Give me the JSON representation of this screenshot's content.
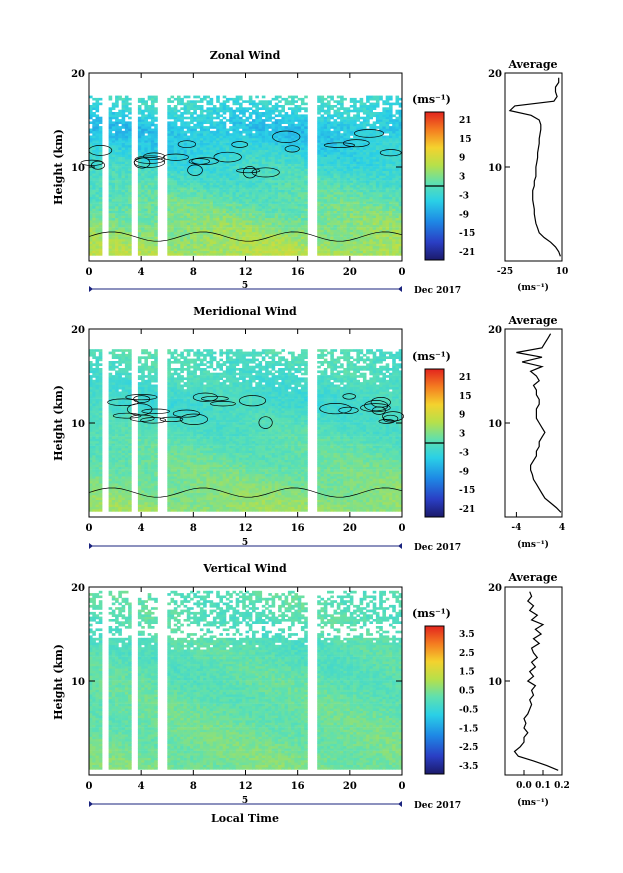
{
  "figure": {
    "xlabel": "Local Time",
    "date_label": "Dec 2017",
    "day_label": "5"
  },
  "chart_data": [
    {
      "type": "heatmap",
      "title": "Zonal Wind",
      "ylabel": "Height (km)",
      "xlim": [
        0,
        24
      ],
      "ylim": [
        0,
        20
      ],
      "x_ticks": [
        "0",
        "4",
        "8",
        "12",
        "16",
        "20",
        "0"
      ],
      "y_ticks": [
        "10",
        "20"
      ],
      "colorbar": {
        "unit": "(ms⁻¹)",
        "labels": [
          "21",
          "15",
          "9",
          "3",
          "-3",
          "-9",
          "-15",
          "-21"
        ],
        "range": [
          -24,
          24
        ],
        "zero_line": true
      },
      "field": {
        "surface": 7,
        "aloft": -6,
        "top": 2,
        "gradient_top": 14,
        "amplitude": 4
      },
      "data_top_km": 17.6,
      "gaps_hours": [
        [
          1.0,
          1.4
        ],
        [
          3.2,
          3.7
        ],
        [
          5.2,
          6.0
        ],
        [
          16.8,
          17.6
        ]
      ],
      "contour_band_km": [
        9.4,
        13.6
      ],
      "profile": {
        "title": "Average",
        "xlim": [
          -25,
          10
        ],
        "x_ticks": [
          "-25",
          "10"
        ],
        "y_ticks": [
          "10",
          "20"
        ],
        "xunit": "(ms⁻¹)",
        "height_km": [
          0.5,
          1,
          1.5,
          2,
          2.5,
          3,
          3.5,
          4,
          4.5,
          5,
          5.5,
          6,
          6.5,
          7,
          7.5,
          8,
          8.5,
          9,
          9.5,
          10,
          10.5,
          11,
          11.5,
          12,
          12.5,
          13,
          13.5,
          14,
          14.5,
          15,
          15.5,
          16,
          16.5,
          17,
          17.5,
          18,
          18.5,
          19,
          19.5
        ],
        "values": [
          9,
          8,
          6,
          3,
          -1,
          -4,
          -5,
          -6,
          -6.5,
          -7,
          -7,
          -7.5,
          -8,
          -8,
          -8,
          -7,
          -7,
          -6,
          -6,
          -6,
          -5.5,
          -5,
          -5,
          -4.5,
          -4,
          -4,
          -3.5,
          -3,
          -3,
          -4,
          -9,
          -22,
          -19,
          5,
          7,
          6,
          6,
          8,
          8
        ]
      }
    },
    {
      "type": "heatmap",
      "title": "Meridional Wind",
      "ylabel": "Height (km)",
      "xlim": [
        0,
        24
      ],
      "ylim": [
        0,
        20
      ],
      "x_ticks": [
        "0",
        "4",
        "8",
        "12",
        "16",
        "20",
        "0"
      ],
      "y_ticks": [
        "10",
        "20"
      ],
      "colorbar": {
        "unit": "(ms⁻¹)",
        "labels": [
          "21",
          "15",
          "9",
          "3",
          "-3",
          "-9",
          "-15",
          "-21"
        ],
        "range": [
          -24,
          24
        ],
        "zero_line": true
      },
      "field": {
        "surface": 5,
        "aloft": -2,
        "top": 0,
        "gradient_top": 12,
        "amplitude": 3
      },
      "data_top_km": 17.8,
      "gaps_hours": [
        [
          1.0,
          1.4
        ],
        [
          3.2,
          3.7
        ],
        [
          5.2,
          6.0
        ],
        [
          16.8,
          17.6
        ]
      ],
      "contour_band_km": [
        10.0,
        13.0
      ],
      "profile": {
        "title": "Average",
        "xlim": [
          -6,
          4
        ],
        "x_ticks": [
          "-4",
          "4"
        ],
        "y_ticks": [
          "10",
          "20"
        ],
        "xunit": "(ms⁻¹)",
        "height_km": [
          0.5,
          1,
          1.5,
          2,
          2.5,
          3,
          3.5,
          4,
          4.5,
          5,
          5.5,
          6,
          6.5,
          7,
          7.5,
          8,
          8.5,
          9,
          9.5,
          10,
          10.5,
          11,
          11.5,
          12,
          12.5,
          13,
          13.5,
          14,
          14.5,
          15,
          15.5,
          16,
          16.5,
          17,
          17.5,
          18,
          18.5,
          19,
          19.5
        ],
        "values": [
          3.8,
          3,
          2,
          1,
          0.5,
          0,
          -0.5,
          -1,
          -1.2,
          -1.5,
          -1.5,
          -1,
          -0.5,
          -0.5,
          0,
          0,
          0.5,
          1,
          0.5,
          0,
          -0.5,
          -0.5,
          -0.5,
          0,
          0,
          -0.5,
          -0.5,
          -1,
          0,
          -0.5,
          -1.5,
          0.5,
          -3,
          0.5,
          -4,
          0.5,
          1,
          1.5,
          2
        ]
      }
    },
    {
      "type": "heatmap",
      "title": "Vertical Wind",
      "ylabel": "Height (km)",
      "xlim": [
        0,
        24
      ],
      "ylim": [
        0,
        20
      ],
      "x_ticks": [
        "0",
        "4",
        "8",
        "12",
        "16",
        "20",
        "0"
      ],
      "y_ticks": [
        "10",
        "20"
      ],
      "colorbar": {
        "unit": "(ms⁻¹)",
        "labels": [
          "3.5",
          "2.5",
          "1.5",
          "0.5",
          "-0.5",
          "-1.5",
          "-2.5",
          "-3.5"
        ],
        "range": [
          -4,
          4
        ],
        "zero_line": false
      },
      "field": {
        "surface": 0.5,
        "aloft": 0,
        "top": 0.1,
        "gradient_top": 14,
        "amplitude": 0.5
      },
      "data_top_km": 19.5,
      "gaps_hours": [
        [
          1.0,
          1.4
        ],
        [
          3.2,
          3.7
        ],
        [
          5.2,
          6.0
        ],
        [
          16.8,
          17.6
        ]
      ],
      "contour_band_km": [],
      "profile": {
        "title": "Average",
        "xlim": [
          -0.1,
          0.2
        ],
        "x_ticks": [
          "0.0",
          "0.1",
          "0.2"
        ],
        "y_ticks": [
          "10",
          "20"
        ],
        "xunit": "(ms⁻¹)",
        "height_km": [
          0.5,
          1,
          1.5,
          2,
          2.5,
          3,
          3.5,
          4,
          4.5,
          5,
          5.5,
          6,
          6.5,
          7,
          7.5,
          8,
          8.5,
          9,
          9.5,
          10,
          10.5,
          11,
          11.5,
          12,
          12.5,
          13,
          13.5,
          14,
          14.5,
          15,
          15.5,
          16,
          16.5,
          17,
          17.5,
          18,
          18.5,
          19,
          19.5
        ],
        "values": [
          0.18,
          0.12,
          0.05,
          -0.03,
          -0.05,
          -0.02,
          0.0,
          0.0,
          0.02,
          0.0,
          0.01,
          0.0,
          0.02,
          0.03,
          0.04,
          0.03,
          0.05,
          0.04,
          0.06,
          0.02,
          0.05,
          0.03,
          0.06,
          0.04,
          0.07,
          0.05,
          0.04,
          0.08,
          0.05,
          0.09,
          0.06,
          0.1,
          0.04,
          0.07,
          0.03,
          0.05,
          0.02,
          0.04,
          0.03
        ]
      }
    }
  ]
}
